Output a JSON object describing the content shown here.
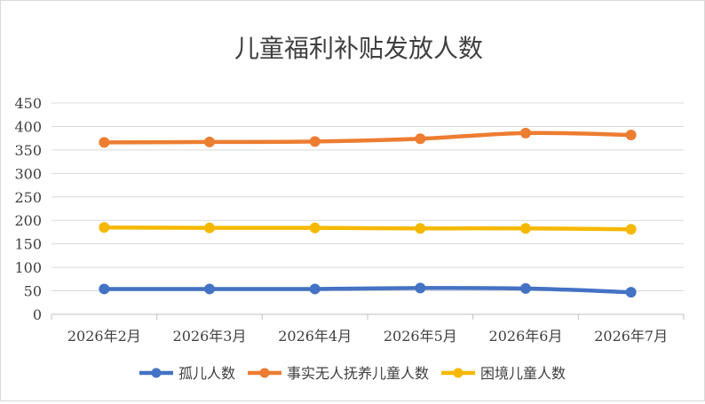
{
  "chart_data": {
    "type": "line",
    "title": "儿童福利补贴发放人数",
    "categories": [
      "2026年2月",
      "2026年3月",
      "2026年4月",
      "2026年5月",
      "2026年6月",
      "2026年7月"
    ],
    "ylim": [
      0,
      450
    ],
    "yticks": [
      "0",
      "50",
      "100",
      "150",
      "200",
      "250",
      "300",
      "350",
      "400",
      "450"
    ],
    "grid": true,
    "legend_position": "bottom",
    "series": [
      {
        "name": "孤儿人数",
        "color": "#4472C4",
        "values": [
          54,
          54,
          54,
          56,
          55,
          47
        ]
      },
      {
        "name": "事实无人抚养儿童人数",
        "color": "#ED7D31",
        "values": [
          366,
          367,
          368,
          374,
          386,
          382
        ]
      },
      {
        "name": "困境儿童人数",
        "color": "#F5B800",
        "values": [
          185,
          184,
          184,
          183,
          183,
          181
        ]
      }
    ]
  }
}
